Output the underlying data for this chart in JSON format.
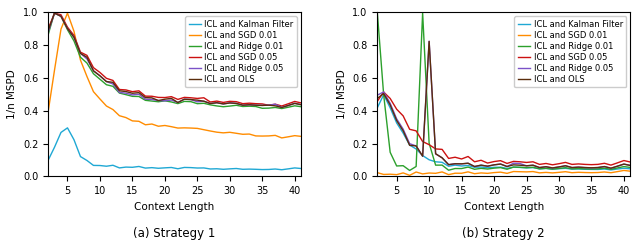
{
  "subplot_titles": [
    "(a) Strategy 1",
    "(b) Strategy 2"
  ],
  "xlabel": "Context Length",
  "ylabel": "1/n MSPD",
  "xlim": [
    2,
    41
  ],
  "ylim": [
    0.0,
    1.0
  ],
  "legend_labels": [
    "ICL and Kalman Filter",
    "ICL and SGD 0.01",
    "ICL and Ridge 0.01",
    "ICL and SGD 0.05",
    "ICL and Ridge 0.05",
    "ICL and OLS"
  ],
  "colors": {
    "kalman": "#1fa8d4",
    "sgd001": "#ff8c00",
    "ridge001": "#2ca02c",
    "sgd005": "#cc1111",
    "ridge005": "#7b52c8",
    "ols": "#5a2d0c"
  },
  "linewidth": 1.0,
  "s1": {
    "kalman": [
      0.09,
      0.18,
      0.27,
      0.3,
      0.22,
      0.13,
      0.09,
      0.07,
      0.065,
      0.063,
      0.062,
      0.06,
      0.058,
      0.057,
      0.056,
      0.055,
      0.054,
      0.053,
      0.052,
      0.052,
      0.051,
      0.05,
      0.05,
      0.049,
      0.048,
      0.048,
      0.047,
      0.047,
      0.047,
      0.046,
      0.046,
      0.046,
      0.046,
      0.045,
      0.045,
      0.045,
      0.045,
      0.045,
      0.045,
      0.045
    ],
    "sgd001": [
      0.38,
      0.65,
      0.9,
      1.0,
      0.88,
      0.72,
      0.6,
      0.52,
      0.47,
      0.43,
      0.4,
      0.38,
      0.36,
      0.34,
      0.33,
      0.32,
      0.32,
      0.31,
      0.31,
      0.3,
      0.3,
      0.29,
      0.29,
      0.29,
      0.28,
      0.28,
      0.27,
      0.27,
      0.27,
      0.26,
      0.26,
      0.26,
      0.25,
      0.25,
      0.25,
      0.25,
      0.24,
      0.24,
      0.24,
      0.24
    ],
    "ridge001": [
      0.85,
      1.0,
      0.98,
      0.9,
      0.82,
      0.74,
      0.68,
      0.63,
      0.59,
      0.56,
      0.54,
      0.52,
      0.5,
      0.49,
      0.48,
      0.47,
      0.46,
      0.46,
      0.46,
      0.45,
      0.45,
      0.45,
      0.45,
      0.44,
      0.44,
      0.44,
      0.43,
      0.43,
      0.43,
      0.43,
      0.43,
      0.43,
      0.43,
      0.42,
      0.42,
      0.42,
      0.42,
      0.42,
      0.42,
      0.42
    ],
    "sgd005": [
      0.88,
      1.0,
      0.99,
      0.92,
      0.85,
      0.78,
      0.72,
      0.67,
      0.63,
      0.6,
      0.57,
      0.55,
      0.53,
      0.52,
      0.51,
      0.5,
      0.49,
      0.49,
      0.48,
      0.48,
      0.48,
      0.47,
      0.47,
      0.47,
      0.47,
      0.46,
      0.46,
      0.46,
      0.46,
      0.45,
      0.45,
      0.45,
      0.45,
      0.45,
      0.44,
      0.44,
      0.44,
      0.44,
      0.44,
      0.44
    ],
    "ridge005": [
      0.86,
      1.0,
      0.98,
      0.91,
      0.84,
      0.77,
      0.7,
      0.65,
      0.61,
      0.58,
      0.55,
      0.53,
      0.51,
      0.5,
      0.49,
      0.48,
      0.47,
      0.47,
      0.46,
      0.46,
      0.46,
      0.46,
      0.46,
      0.45,
      0.45,
      0.45,
      0.45,
      0.45,
      0.45,
      0.44,
      0.44,
      0.44,
      0.44,
      0.44,
      0.44,
      0.44,
      0.43,
      0.43,
      0.43,
      0.43
    ],
    "ols": [
      0.87,
      1.0,
      0.98,
      0.91,
      0.84,
      0.77,
      0.71,
      0.65,
      0.61,
      0.58,
      0.56,
      0.54,
      0.52,
      0.51,
      0.5,
      0.49,
      0.48,
      0.47,
      0.47,
      0.47,
      0.46,
      0.46,
      0.46,
      0.46,
      0.45,
      0.45,
      0.45,
      0.45,
      0.45,
      0.44,
      0.44,
      0.44,
      0.44,
      0.44,
      0.44,
      0.43,
      0.43,
      0.43,
      0.43,
      0.43
    ]
  },
  "s2": {
    "kalman": [
      0.41,
      0.5,
      0.42,
      0.33,
      0.26,
      0.2,
      0.16,
      0.13,
      0.1,
      0.09,
      0.08,
      0.07,
      0.07,
      0.065,
      0.062,
      0.06,
      0.058,
      0.056,
      0.055,
      0.054,
      0.053,
      0.052,
      0.051,
      0.05,
      0.05,
      0.049,
      0.049,
      0.048,
      0.048,
      0.047,
      0.047,
      0.047,
      0.046,
      0.046,
      0.045,
      0.045,
      0.044,
      0.044,
      0.043,
      0.043
    ],
    "sgd001": [
      0.015,
      0.015,
      0.016,
      0.016,
      0.017,
      0.018,
      0.018,
      0.019,
      0.019,
      0.02,
      0.02,
      0.021,
      0.021,
      0.021,
      0.022,
      0.022,
      0.022,
      0.023,
      0.023,
      0.023,
      0.024,
      0.024,
      0.024,
      0.025,
      0.025,
      0.025,
      0.025,
      0.026,
      0.026,
      0.026,
      0.026,
      0.027,
      0.027,
      0.027,
      0.027,
      0.027,
      0.028,
      0.028,
      0.028,
      0.028
    ],
    "ridge001": [
      1.0,
      0.5,
      0.15,
      0.07,
      0.06,
      0.05,
      0.05,
      1.0,
      0.2,
      0.07,
      0.06,
      0.05,
      0.05,
      0.05,
      0.05,
      0.05,
      0.05,
      0.05,
      0.05,
      0.05,
      0.05,
      0.05,
      0.05,
      0.05,
      0.05,
      0.05,
      0.05,
      0.05,
      0.05,
      0.05,
      0.05,
      0.05,
      0.05,
      0.05,
      0.05,
      0.05,
      0.05,
      0.05,
      0.05,
      0.05
    ],
    "sgd005": [
      0.44,
      0.52,
      0.48,
      0.42,
      0.36,
      0.31,
      0.26,
      0.22,
      0.19,
      0.17,
      0.15,
      0.13,
      0.12,
      0.11,
      0.11,
      0.1,
      0.1,
      0.09,
      0.09,
      0.09,
      0.09,
      0.08,
      0.08,
      0.08,
      0.08,
      0.08,
      0.08,
      0.08,
      0.08,
      0.08,
      0.08,
      0.08,
      0.08,
      0.08,
      0.08,
      0.08,
      0.08,
      0.08,
      0.08,
      0.08
    ],
    "ridge005": [
      0.48,
      0.52,
      0.45,
      0.36,
      0.28,
      0.22,
      0.17,
      0.13,
      0.82,
      0.14,
      0.1,
      0.09,
      0.08,
      0.08,
      0.07,
      0.07,
      0.07,
      0.07,
      0.07,
      0.07,
      0.07,
      0.07,
      0.07,
      0.06,
      0.06,
      0.06,
      0.06,
      0.06,
      0.06,
      0.06,
      0.06,
      0.06,
      0.06,
      0.06,
      0.06,
      0.06,
      0.06,
      0.06,
      0.06,
      0.06
    ],
    "ols": [
      0.46,
      0.51,
      0.44,
      0.35,
      0.27,
      0.21,
      0.17,
      0.13,
      0.82,
      0.14,
      0.1,
      0.09,
      0.08,
      0.08,
      0.07,
      0.07,
      0.07,
      0.07,
      0.07,
      0.07,
      0.07,
      0.06,
      0.06,
      0.06,
      0.06,
      0.06,
      0.06,
      0.06,
      0.06,
      0.06,
      0.06,
      0.06,
      0.06,
      0.06,
      0.06,
      0.06,
      0.06,
      0.06,
      0.06,
      0.06
    ]
  }
}
